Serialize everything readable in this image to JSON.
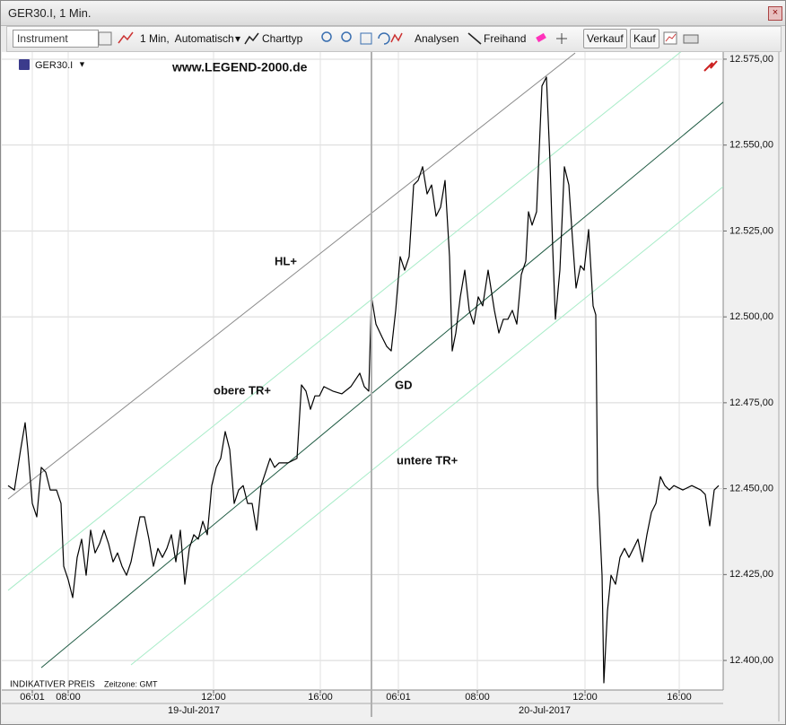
{
  "window": {
    "title": "GER30.I, 1 Min."
  },
  "toolbar": {
    "instrument": "Instrument",
    "interval": "1 Min,  Automatisch",
    "chart_type": "Charttyp",
    "analyses": "Analysen",
    "freehand": "Freihand",
    "sell": "Verkauf",
    "buy": "Kauf"
  },
  "chart_data": {
    "type": "line",
    "instrument": "GER30.I",
    "watermark": "www.LEGEND-2000.de",
    "footer": "INDIKATIVER PREIS",
    "timezone": "Zeitzone: GMT",
    "grid": true,
    "x": [
      0,
      7,
      14,
      19,
      22,
      27,
      32,
      37,
      42,
      47,
      54,
      59,
      62,
      67,
      72,
      77,
      82,
      87,
      92,
      97,
      102,
      107,
      112,
      117,
      122,
      127,
      132,
      137,
      142,
      147,
      152,
      157,
      162,
      167,
      172,
      177,
      182,
      187,
      192,
      197,
      202,
      207,
      212,
      217,
      222,
      227,
      232,
      237,
      242,
      247,
      252,
      257,
      262,
      267,
      272,
      277,
      282,
      287,
      292,
      297,
      302,
      312,
      322,
      327,
      332,
      337,
      342,
      347,
      352,
      362,
      372,
      382,
      392,
      397,
      402,
      405,
      410,
      417,
      422,
      427,
      432,
      437,
      442,
      447,
      452,
      457,
      462,
      467,
      472,
      477,
      482,
      487,
      492,
      495,
      499,
      504,
      509,
      514,
      519,
      524,
      529,
      535,
      542,
      547,
      552,
      557,
      562,
      567,
      572,
      577,
      580,
      584,
      589,
      592,
      595,
      600,
      604,
      607,
      610,
      615,
      620,
      625,
      629,
      633,
      638,
      642,
      647,
      652,
      655,
      657,
      659,
      662,
      664,
      668,
      672,
      677,
      682,
      687,
      692,
      697,
      702,
      707,
      712,
      717,
      722,
      727,
      732,
      737,
      742,
      752,
      762,
      772,
      777,
      782,
      787,
      792
    ],
    "series": [
      {
        "color": "#000000",
        "values": [
          12450.9,
          12449.6,
          12461.4,
          12469.2,
          12461.4,
          12445.7,
          12441.8,
          12456.2,
          12454.8,
          12449.6,
          12449.6,
          12445.7,
          12427.4,
          12423.5,
          12418.3,
          12430.0,
          12435.3,
          12424.8,
          12437.9,
          12431.3,
          12434.0,
          12437.9,
          12434.0,
          12428.7,
          12431.3,
          12427.4,
          12424.8,
          12428.7,
          12435.3,
          12441.8,
          12441.8,
          12435.3,
          12427.4,
          12432.6,
          12430.0,
          12432.6,
          12436.6,
          12428.7,
          12437.9,
          12422.2,
          12432.6,
          12436.6,
          12435.3,
          12440.5,
          12436.6,
          12450.9,
          12456.2,
          12458.8,
          12466.6,
          12461.4,
          12445.7,
          12449.6,
          12450.9,
          12445.7,
          12445.7,
          12437.9,
          12450.9,
          12454.8,
          12458.8,
          12456.2,
          12457.5,
          12457.5,
          12458.8,
          12480.2,
          12478.4,
          12473.1,
          12477.0,
          12477.0,
          12479.7,
          12478.4,
          12477.6,
          12479.7,
          12483.6,
          12479.7,
          12478.4,
          12505.8,
          12497.9,
          12494.0,
          12491.4,
          12490.1,
          12501.9,
          12517.5,
          12513.6,
          12517.5,
          12538.4,
          12539.7,
          12543.7,
          12535.8,
          12538.4,
          12529.3,
          12531.9,
          12539.7,
          12517.5,
          12490.1,
          12495.3,
          12505.8,
          12513.6,
          12501.9,
          12497.9,
          12505.8,
          12503.2,
          12513.6,
          12501.9,
          12495.3,
          12499.3,
          12499.3,
          12501.9,
          12497.9,
          12512.3,
          12516.2,
          12530.6,
          12526.7,
          12530.6,
          12548.9,
          12567.2,
          12569.8,
          12545.0,
          12520.1,
          12499.3,
          12513.6,
          12543.7,
          12538.4,
          12522.8,
          12508.4,
          12514.9,
          12513.6,
          12525.4,
          12503.2,
          12500.6,
          12450.9,
          12441.8,
          12424.8,
          12393.5,
          12414.4,
          12424.8,
          12422.2,
          12430.0,
          12432.6,
          12430.0,
          12432.6,
          12435.3,
          12428.7,
          12436.6,
          12443.1,
          12445.7,
          12453.5,
          12450.9,
          12449.6,
          12450.9,
          12449.6,
          12450.9,
          12449.6,
          12448.3,
          12439.2,
          12449.6,
          12450.9
        ]
      }
    ],
    "xlim": [
      0,
      797
    ],
    "ylim": [
      12391.4,
      12577.6
    ],
    "xticks": [
      {
        "value": 27,
        "label": "06:01"
      },
      {
        "value": 67,
        "label": "08:00"
      },
      {
        "value": 229,
        "label": "12:00"
      },
      {
        "value": 348,
        "label": "16:00"
      },
      {
        "value": 435,
        "label": "06:01"
      },
      {
        "value": 523,
        "label": "08:00"
      },
      {
        "value": 643,
        "label": "12:00"
      },
      {
        "value": 748,
        "label": "16:00"
      }
    ],
    "date_ticks": [
      {
        "value": 207,
        "label": "19-Jul-2017"
      },
      {
        "value": 598,
        "label": "20-Jul-2017"
      }
    ],
    "yticks": [
      {
        "value": 12400,
        "label": "12.400,00"
      },
      {
        "value": 12425,
        "label": "12.425,00"
      },
      {
        "value": 12450,
        "label": "12.450,00"
      },
      {
        "value": 12475,
        "label": "12.475,00"
      },
      {
        "value": 12500,
        "label": "12.500,00"
      },
      {
        "value": 12525,
        "label": "12.525,00"
      },
      {
        "value": 12550,
        "label": "12.550,00"
      },
      {
        "value": 12575,
        "label": "12.575,00"
      }
    ],
    "annotation_color": "#3aa34a",
    "trendlines": [
      {
        "label": "HL+",
        "color": "#8a8a8a",
        "x": [
          0,
          632
        ],
        "y": [
          12447.0,
          12576.8
        ]
      },
      {
        "label": "obere TR+",
        "color": "#a8ecc8",
        "x": [
          0,
          752
        ],
        "y": [
          12420.4,
          12577.6
        ]
      },
      {
        "label": "GD",
        "color": "#1f5b43",
        "x": [
          37,
          797
        ],
        "y": [
          12397.9,
          12562.5
        ]
      },
      {
        "label": "untere TR+",
        "color": "#a8ecc8",
        "x": [
          137,
          797
        ],
        "y": [
          12398.7,
          12537.9
        ]
      }
    ]
  }
}
